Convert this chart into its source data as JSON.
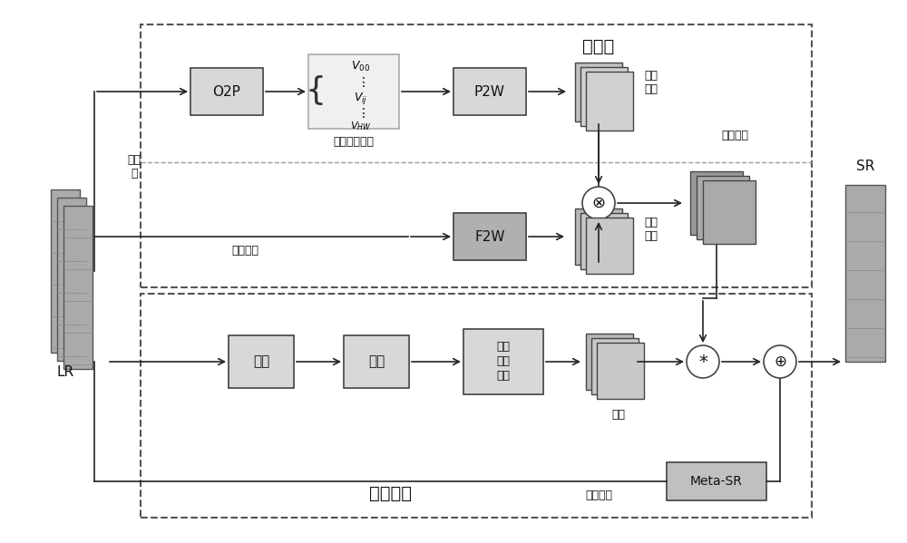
{
  "bg_color": "#ffffff",
  "box_light": "#d8d8d8",
  "box_medium": "#b8b8b8",
  "box_dark": "#909090",
  "edge_color": "#444444",
  "arrow_color": "#222222",
  "text_color": "#111111",
  "upper_label": "上采样",
  "lower_label": "特征学习",
  "o2p_label": "O2P",
  "p2w_label": "P2W",
  "f2w_label": "F2W",
  "align_label": "对齐",
  "fuse_label": "融合",
  "scale_label": "尺度\n感知\n重建",
  "metasr_label": "Meta-SR",
  "lr_label": "LR",
  "sr_label": "SR",
  "pos_weight_label": "位置\n权重",
  "feat_weight_label": "特征\n权重",
  "final_weight_label": "最终权重",
  "pos_vec_label": "位置关系向量",
  "offset_label": "偏移\n量",
  "align_feat_label": "对齐特征",
  "feat_label": "特征",
  "residual_label": "残差连接"
}
